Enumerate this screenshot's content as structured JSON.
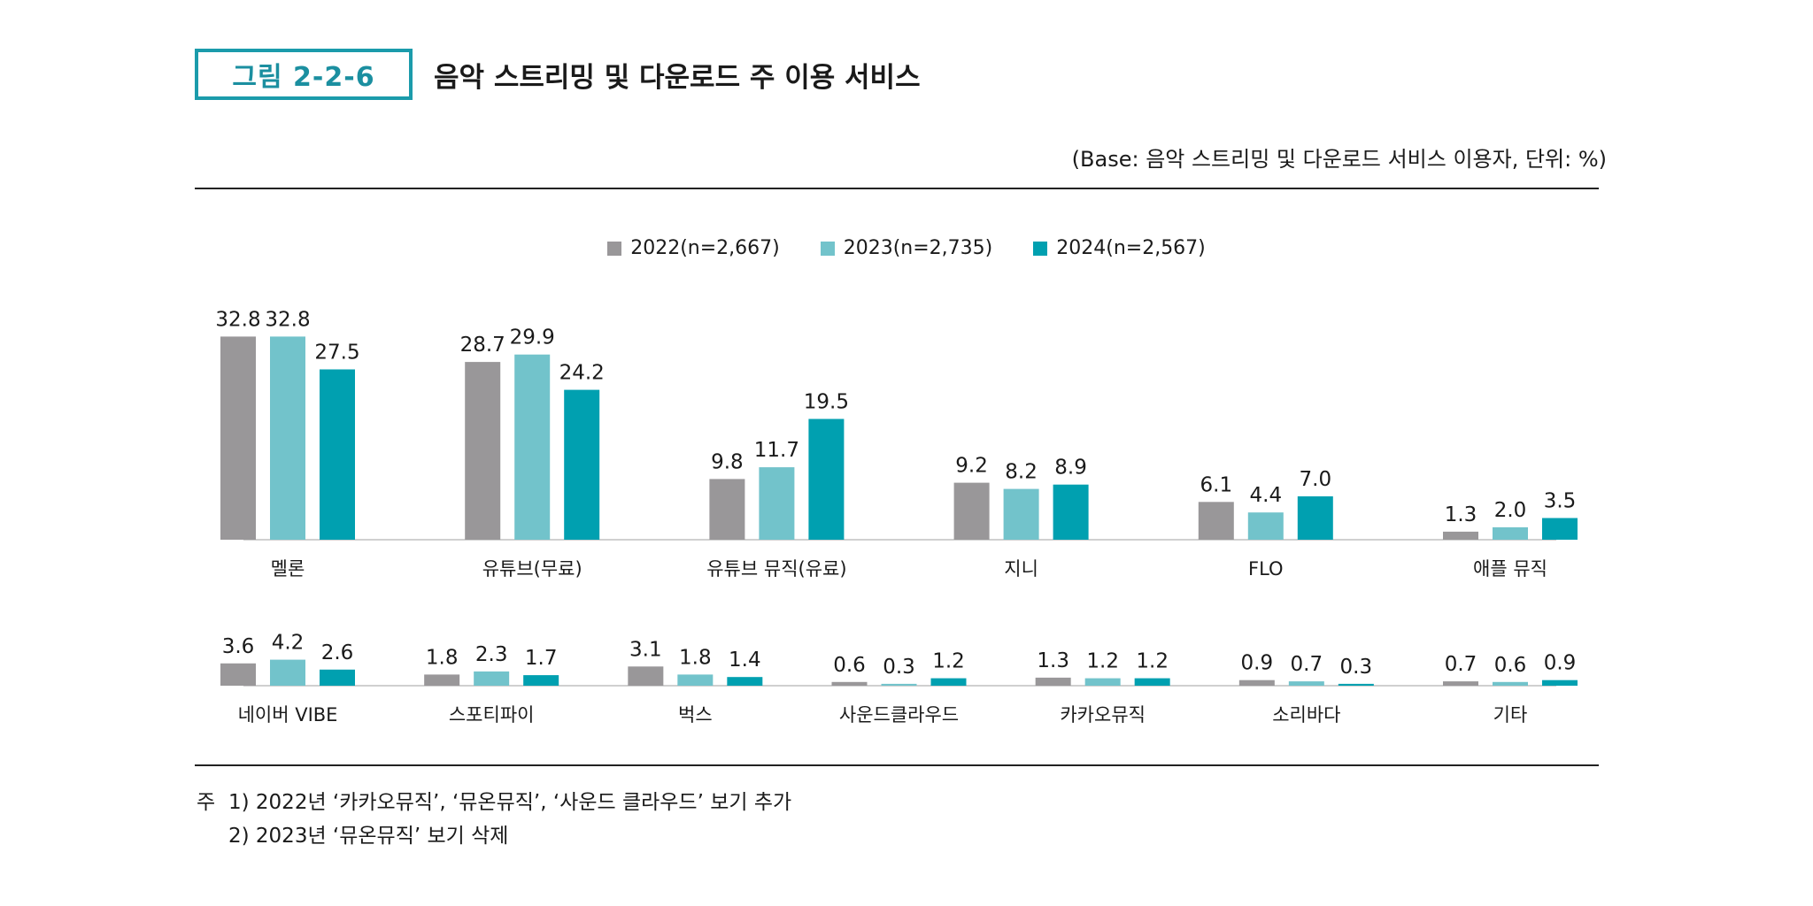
{
  "figure": {
    "label": "그림 2-2-6",
    "title": "음악 스트리밍 및 다운로드 주 이용 서비스",
    "base_note": "(Base: 음악 스트리밍 및 다운로드 서비스 이용자, 단위: %)"
  },
  "colors": {
    "accent": "#1b9bab",
    "series_2022": "#999799",
    "series_2023": "#72c3cb",
    "series_2024": "#00a0b0"
  },
  "legend": [
    {
      "label": "2022(n=2,667)",
      "color": "#999799"
    },
    {
      "label": "2023(n=2,735)",
      "color": "#72c3cb"
    },
    {
      "label": "2024(n=2,567)",
      "color": "#00a0b0"
    }
  ],
  "chart_data": [
    {
      "type": "bar",
      "title": "",
      "xlabel": "",
      "ylabel": "",
      "categories": [
        "멜론",
        "유튜브(무료)",
        "유튜브 뮤직(유료)",
        "지니",
        "FLO",
        "애플 뮤직"
      ],
      "series": [
        {
          "name": "2022(n=2,667)",
          "color": "#999799",
          "values": [
            32.8,
            28.7,
            9.8,
            9.2,
            6.1,
            1.3
          ]
        },
        {
          "name": "2023(n=2,735)",
          "color": "#72c3cb",
          "values": [
            32.8,
            29.9,
            11.7,
            8.2,
            4.4,
            2.0
          ]
        },
        {
          "name": "2024(n=2,567)",
          "color": "#00a0b0",
          "values": [
            27.5,
            24.2,
            19.5,
            8.9,
            7.0,
            3.5
          ]
        }
      ],
      "ylim": [
        0,
        35
      ],
      "grid": false,
      "legend_position": "top"
    },
    {
      "type": "bar",
      "title": "",
      "xlabel": "",
      "ylabel": "",
      "categories": [
        "네이버 VIBE",
        "스포티파이",
        "벅스",
        "사운드클라우드",
        "카카오뮤직",
        "소리바다",
        "기타"
      ],
      "series": [
        {
          "name": "2022(n=2,667)",
          "color": "#999799",
          "values": [
            3.6,
            1.8,
            3.1,
            0.6,
            1.3,
            0.9,
            0.7
          ]
        },
        {
          "name": "2023(n=2,735)",
          "color": "#72c3cb",
          "values": [
            4.2,
            2.3,
            1.8,
            0.3,
            1.2,
            0.7,
            0.6
          ]
        },
        {
          "name": "2024(n=2,567)",
          "color": "#00a0b0",
          "values": [
            2.6,
            1.7,
            1.4,
            1.2,
            1.2,
            0.3,
            0.9
          ]
        }
      ],
      "ylim": [
        0,
        35
      ],
      "grid": false,
      "legend_position": "top"
    }
  ],
  "notes": {
    "prefix": "주",
    "lines": [
      "1) 2022년 ‘카카오뮤직’, ‘뮤온뮤직’, ‘사운드 클라우드’ 보기 추가",
      "2) 2023년 ‘뮤온뮤직’ 보기 삭제"
    ]
  }
}
